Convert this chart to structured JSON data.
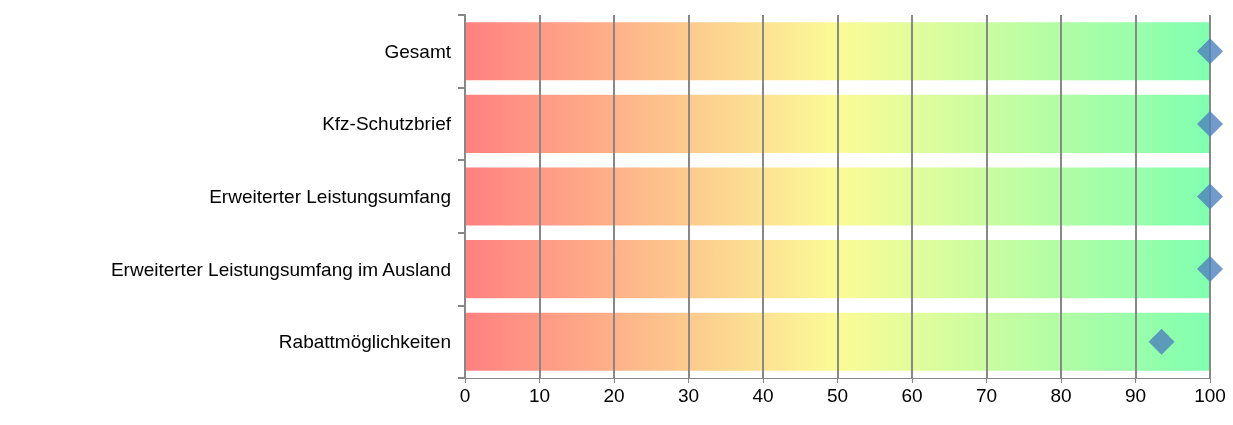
{
  "chart_data": {
    "type": "bar",
    "orientation": "horizontal",
    "categories": [
      "Gesamt",
      "Kfz-Schutzbrief",
      "Erweiterter Leistungsumfang",
      "Erweiterter Leistungsumfang im Ausland",
      "Rabattmöglichkeiten"
    ],
    "series": [
      {
        "color": "#ff8080",
        "values": [
          100,
          100,
          100,
          100,
          100
        ]
      },
      {
        "type": "scatter",
        "color": "#4f81bd",
        "values": [
          100,
          100,
          100,
          100,
          93.5
        ],
        "marker": "diamond"
      }
    ],
    "xlim": [
      0,
      100
    ],
    "xticks": [
      0,
      10,
      20,
      30,
      40,
      50,
      60,
      70,
      80,
      90,
      100
    ],
    "grid": "x"
  }
}
